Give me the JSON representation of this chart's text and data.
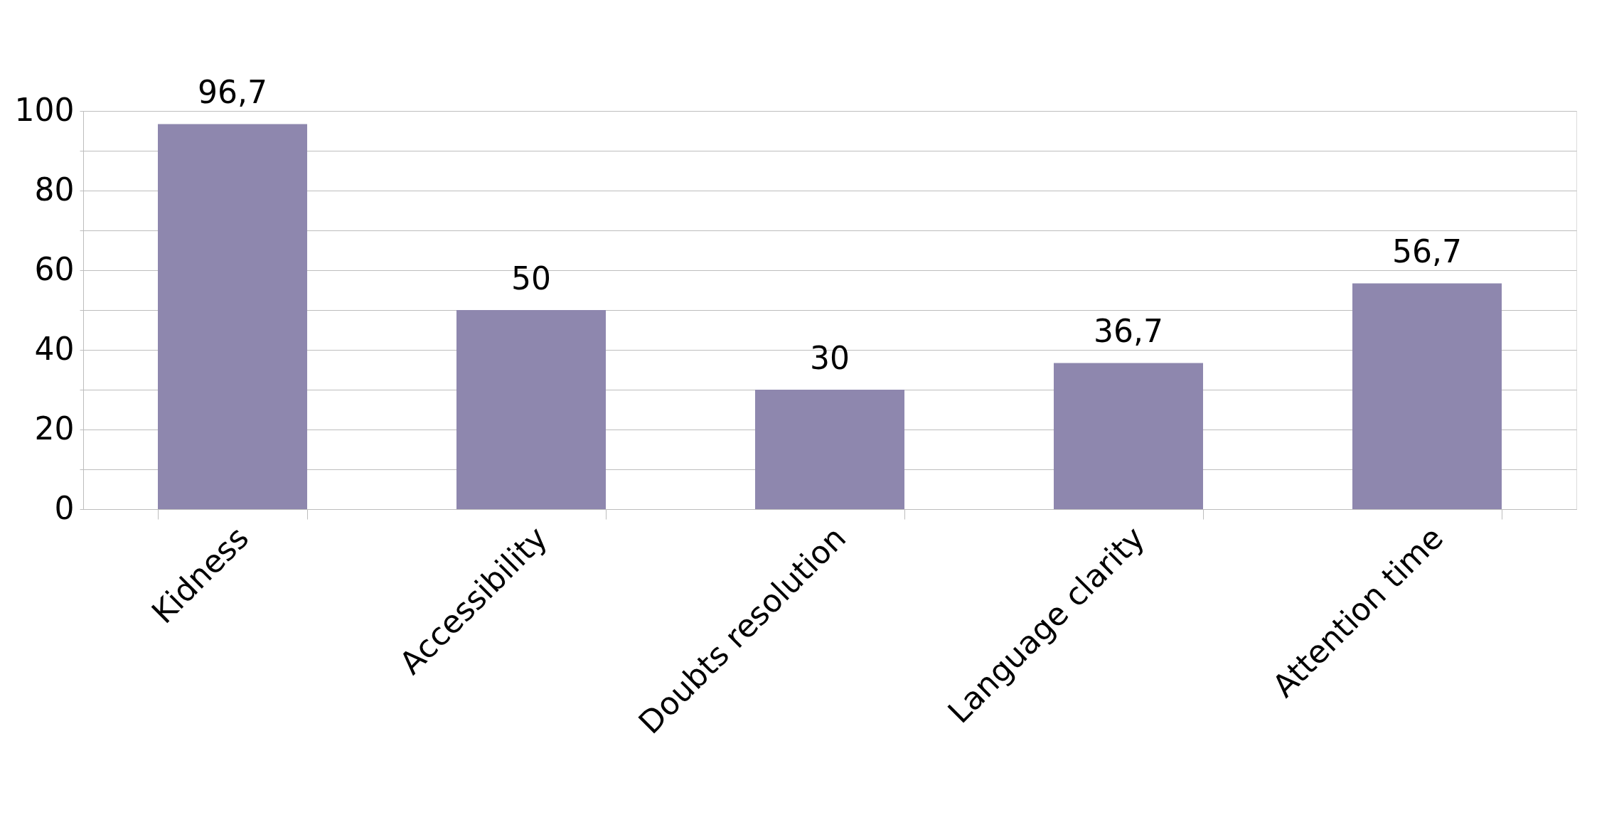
{
  "chart_data": {
    "type": "bar",
    "categories": [
      "Kidness",
      "Accessibility",
      "Doubts resolution",
      "Language clarity",
      "Attention time"
    ],
    "values": [
      96.7,
      50,
      30,
      36.7,
      56.7
    ],
    "value_labels": [
      "96,7",
      "50",
      "30",
      "36,7",
      "56,7"
    ],
    "color": "#8e87ae",
    "ylim": [
      0,
      100
    ],
    "yticks": [
      0,
      {
        "value": 10,
        "label": null
      },
      20,
      {
        "value": 30,
        "label": null
      },
      40,
      {
        "value": 50,
        "label": null
      },
      60,
      {
        "value": 70,
        "label": null
      },
      80,
      {
        "value": 90,
        "label": null
      },
      100
    ],
    "grid": "y"
  }
}
